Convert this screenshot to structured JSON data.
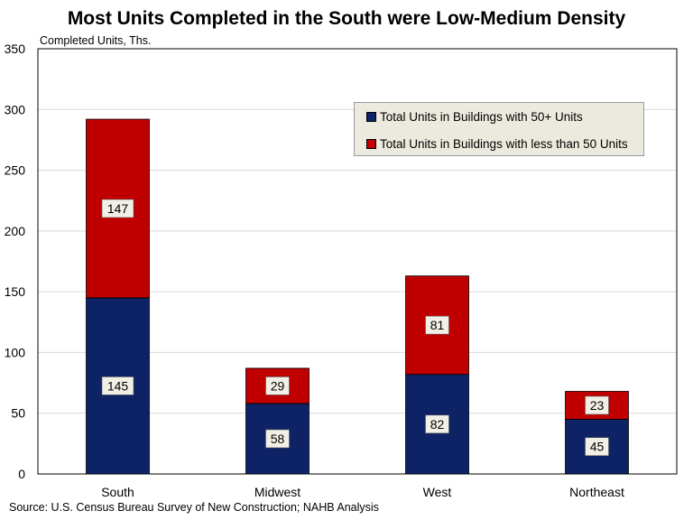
{
  "chart_data": {
    "type": "bar",
    "stacked": true,
    "title": "Most Units Completed in the South were Low-Medium Density",
    "ylabel": "Completed Units, Ths.",
    "xlabel": "",
    "categories": [
      "South",
      "Midwest",
      "West",
      "Northeast"
    ],
    "series": [
      {
        "name": "Total Units in Buildings with 50+ Units",
        "color": "#0d2366",
        "values": [
          145,
          58,
          82,
          45
        ]
      },
      {
        "name": "Total Units in Buildings with less than 50 Units",
        "color": "#c00000",
        "values": [
          147,
          29,
          81,
          23
        ]
      }
    ],
    "ylim": [
      0,
      350
    ],
    "yticks": [
      0,
      50,
      100,
      150,
      200,
      250,
      300,
      350
    ],
    "grid": true,
    "legend_position": "top-right"
  },
  "source": "Source: U.S. Census Bureau Survey of New Construction; NAHB Analysis"
}
